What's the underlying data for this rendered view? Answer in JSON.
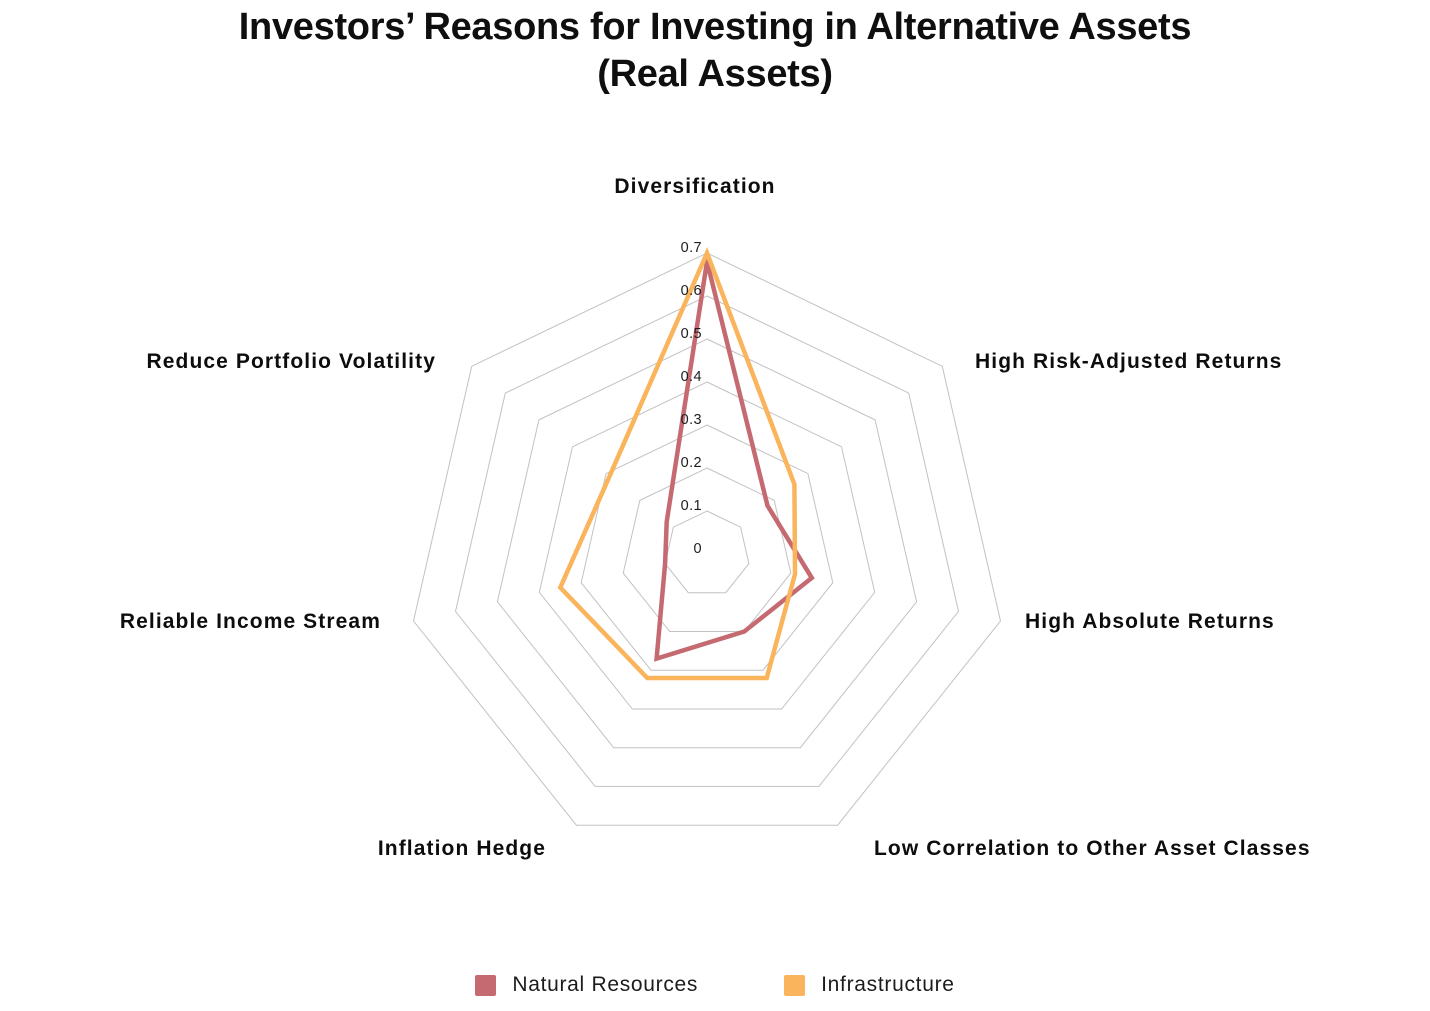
{
  "title": {
    "line1": "Investors’ Reasons for Investing in Alternative Assets",
    "line2": "(Real Assets)"
  },
  "chart_data": {
    "type": "radar",
    "categories": [
      "Diversification",
      "High Risk-Adjusted Returns",
      "High Absolute Returns",
      "Low Correlation to Other Asset Classes",
      "Inflation Hedge",
      "Reliable Income Stream",
      "Reduce Portfolio Volatility"
    ],
    "series": [
      {
        "name": "Natural Resources",
        "color": "#c56a71",
        "values": [
          0.68,
          0.18,
          0.25,
          0.2,
          0.27,
          0.1,
          0.12
        ]
      },
      {
        "name": "Infrastructure",
        "color": "#fab45b",
        "values": [
          0.7,
          0.26,
          0.21,
          0.32,
          0.32,
          0.35,
          0.29
        ]
      }
    ],
    "radial_axis": {
      "min": 0,
      "max": 0.7,
      "tick_step": 0.1,
      "tick_labels": [
        "0",
        "0.1",
        "0.2",
        "0.3",
        "0.4",
        "0.5",
        "0.6",
        "0.7"
      ]
    },
    "grid": {
      "shape": "heptagon",
      "rings": 7,
      "color": "#c2c2c2",
      "show_spokes": false
    },
    "legend_position": "bottom"
  },
  "colors": {
    "background": "#ffffff",
    "title_text": "#0f0f0f",
    "axis_label_text": "#0d0d0d",
    "tick_text": "#1d1d1d"
  }
}
